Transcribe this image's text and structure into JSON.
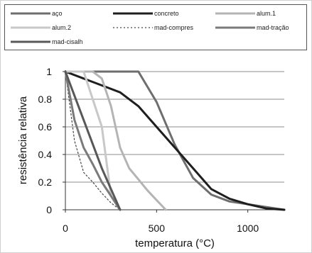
{
  "chart_data": {
    "type": "line",
    "xlabel": "temperatura (°C)",
    "ylabel": "resistência relativa",
    "xlim": [
      0,
      1200
    ],
    "ylim": [
      0,
      1
    ],
    "xticks": [
      0,
      500,
      1000
    ],
    "yticks": [
      0,
      0.2,
      0.4,
      0.6,
      0.8,
      1
    ],
    "ytick_labels": [
      "0",
      "0.2",
      "0.4",
      "0.6",
      "0.8",
      "1"
    ],
    "grid": "horizontal",
    "legend_position": "top",
    "series": [
      {
        "name": "aço",
        "color": "#6e6e6e",
        "width": 3,
        "dash": "",
        "x": [
          0,
          400,
          500,
          600,
          700,
          800,
          900,
          1000,
          1100,
          1200
        ],
        "y": [
          1,
          1,
          0.78,
          0.47,
          0.23,
          0.11,
          0.06,
          0.04,
          0.02,
          0
        ]
      },
      {
        "name": "concreto",
        "color": "#1e1e1e",
        "width": 3,
        "dash": "",
        "x": [
          0,
          100,
          200,
          300,
          400,
          500,
          600,
          700,
          800,
          900,
          1000,
          1100,
          1200
        ],
        "y": [
          1,
          0.95,
          0.9,
          0.85,
          0.75,
          0.6,
          0.45,
          0.3,
          0.15,
          0.08,
          0.04,
          0.01,
          0
        ]
      },
      {
        "name": "alum.1",
        "color": "#b4b4b4",
        "width": 3,
        "dash": "",
        "x": [
          0,
          150,
          200,
          250,
          300,
          350,
          400,
          450,
          500,
          550
        ],
        "y": [
          1,
          1,
          0.95,
          0.75,
          0.45,
          0.3,
          0.22,
          0.14,
          0.07,
          0
        ]
      },
      {
        "name": "alum.2",
        "color": "#c8c8c8",
        "width": 3,
        "dash": "",
        "x": [
          0,
          100,
          150,
          200,
          250,
          300
        ],
        "y": [
          1,
          1,
          0.8,
          0.6,
          0.1,
          0
        ]
      },
      {
        "name": "mad-compres",
        "color": "#444444",
        "width": 1.2,
        "dash": "2,3",
        "x": [
          0,
          50,
          100,
          150,
          200,
          250,
          300
        ],
        "y": [
          1,
          0.5,
          0.27,
          0.2,
          0.12,
          0.05,
          0
        ]
      },
      {
        "name": "mad-tração",
        "color": "#7a7a7a",
        "width": 3,
        "dash": "",
        "x": [
          0,
          50,
          100,
          150,
          200,
          250,
          300
        ],
        "y": [
          1,
          0.65,
          0.45,
          0.33,
          0.2,
          0.1,
          0
        ]
      },
      {
        "name": "mad-cisalh",
        "color": "#585858",
        "width": 3,
        "dash": "",
        "x": [
          0,
          100,
          200,
          300
        ],
        "y": [
          1,
          0.65,
          0.3,
          0
        ]
      }
    ]
  }
}
